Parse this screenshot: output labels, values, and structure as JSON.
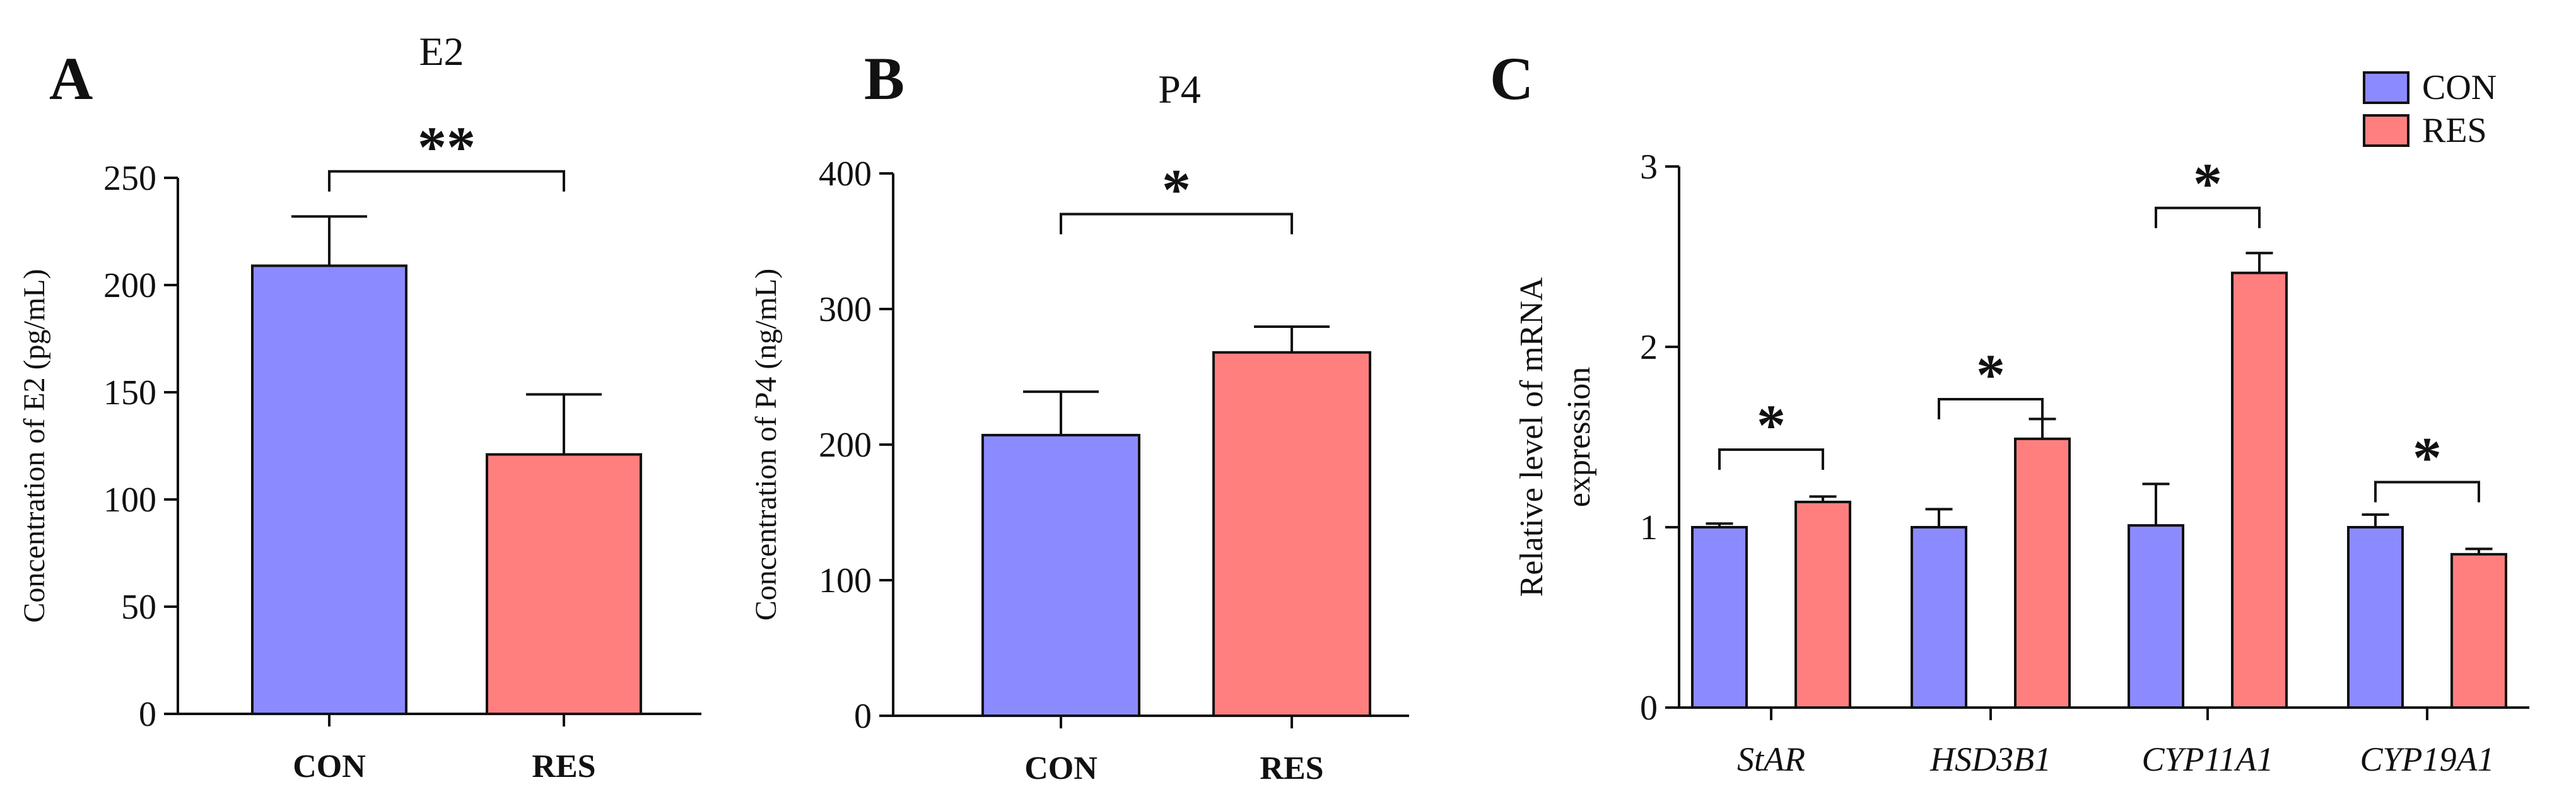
{
  "colors": {
    "con": "#8b8bff",
    "res": "#ff7f7f"
  },
  "panels": {
    "a": {
      "letter": "A"
    },
    "b": {
      "letter": "B"
    },
    "c": {
      "letter": "C"
    }
  },
  "legend": {
    "items": [
      {
        "label": "CON",
        "series": "con"
      },
      {
        "label": "RES",
        "series": "res"
      }
    ]
  },
  "chart_data": [
    {
      "id": "a",
      "type": "bar",
      "title": "E2",
      "ylabel": "Concentration of E2 (pg/mL)",
      "xlabel": "",
      "ylim": [
        0,
        250
      ],
      "yticks": [
        0,
        50,
        100,
        150,
        200,
        250
      ],
      "categories": [
        "CON",
        "RES"
      ],
      "values": [
        209,
        121
      ],
      "errors": [
        23,
        28
      ],
      "bar_colors": [
        "con",
        "res"
      ],
      "significance": [
        {
          "from": 0,
          "to": 1,
          "label": "**",
          "y": 253
        }
      ]
    },
    {
      "id": "b",
      "type": "bar",
      "title": "P4",
      "ylabel": "Concentration of P4 (ng/mL)",
      "xlabel": "",
      "ylim": [
        0,
        400
      ],
      "yticks": [
        0,
        100,
        200,
        300,
        400
      ],
      "categories": [
        "CON",
        "RES"
      ],
      "values": [
        207,
        268
      ],
      "errors": [
        32,
        19
      ],
      "bar_colors": [
        "con",
        "res"
      ],
      "significance": [
        {
          "from": 0,
          "to": 1,
          "label": "*",
          "y": 370
        }
      ]
    },
    {
      "id": "c",
      "type": "bar",
      "title": "",
      "ylabel_lines": [
        "Relative level of mRNA",
        "expression"
      ],
      "xlabel": "",
      "ylim": [
        0,
        3
      ],
      "yticks": [
        0,
        1,
        2,
        3
      ],
      "categories": [
        "StAR",
        "HSD3B1",
        "CYP11A1",
        "CYP19A1"
      ],
      "series": [
        {
          "name": "CON",
          "color": "con",
          "values": [
            1.0,
            1.0,
            1.01,
            1.0
          ],
          "errors": [
            0.02,
            0.1,
            0.23,
            0.07
          ]
        },
        {
          "name": "RES",
          "color": "res",
          "values": [
            1.14,
            1.49,
            2.41,
            0.85
          ],
          "errors": [
            0.03,
            0.11,
            0.11,
            0.03
          ]
        }
      ],
      "significance": [
        {
          "category": 0,
          "label": "*",
          "y": 1.43
        },
        {
          "category": 1,
          "label": "*",
          "y": 1.71
        },
        {
          "category": 2,
          "label": "*",
          "y": 2.77
        },
        {
          "category": 3,
          "label": "*",
          "y": 1.25
        }
      ]
    }
  ]
}
